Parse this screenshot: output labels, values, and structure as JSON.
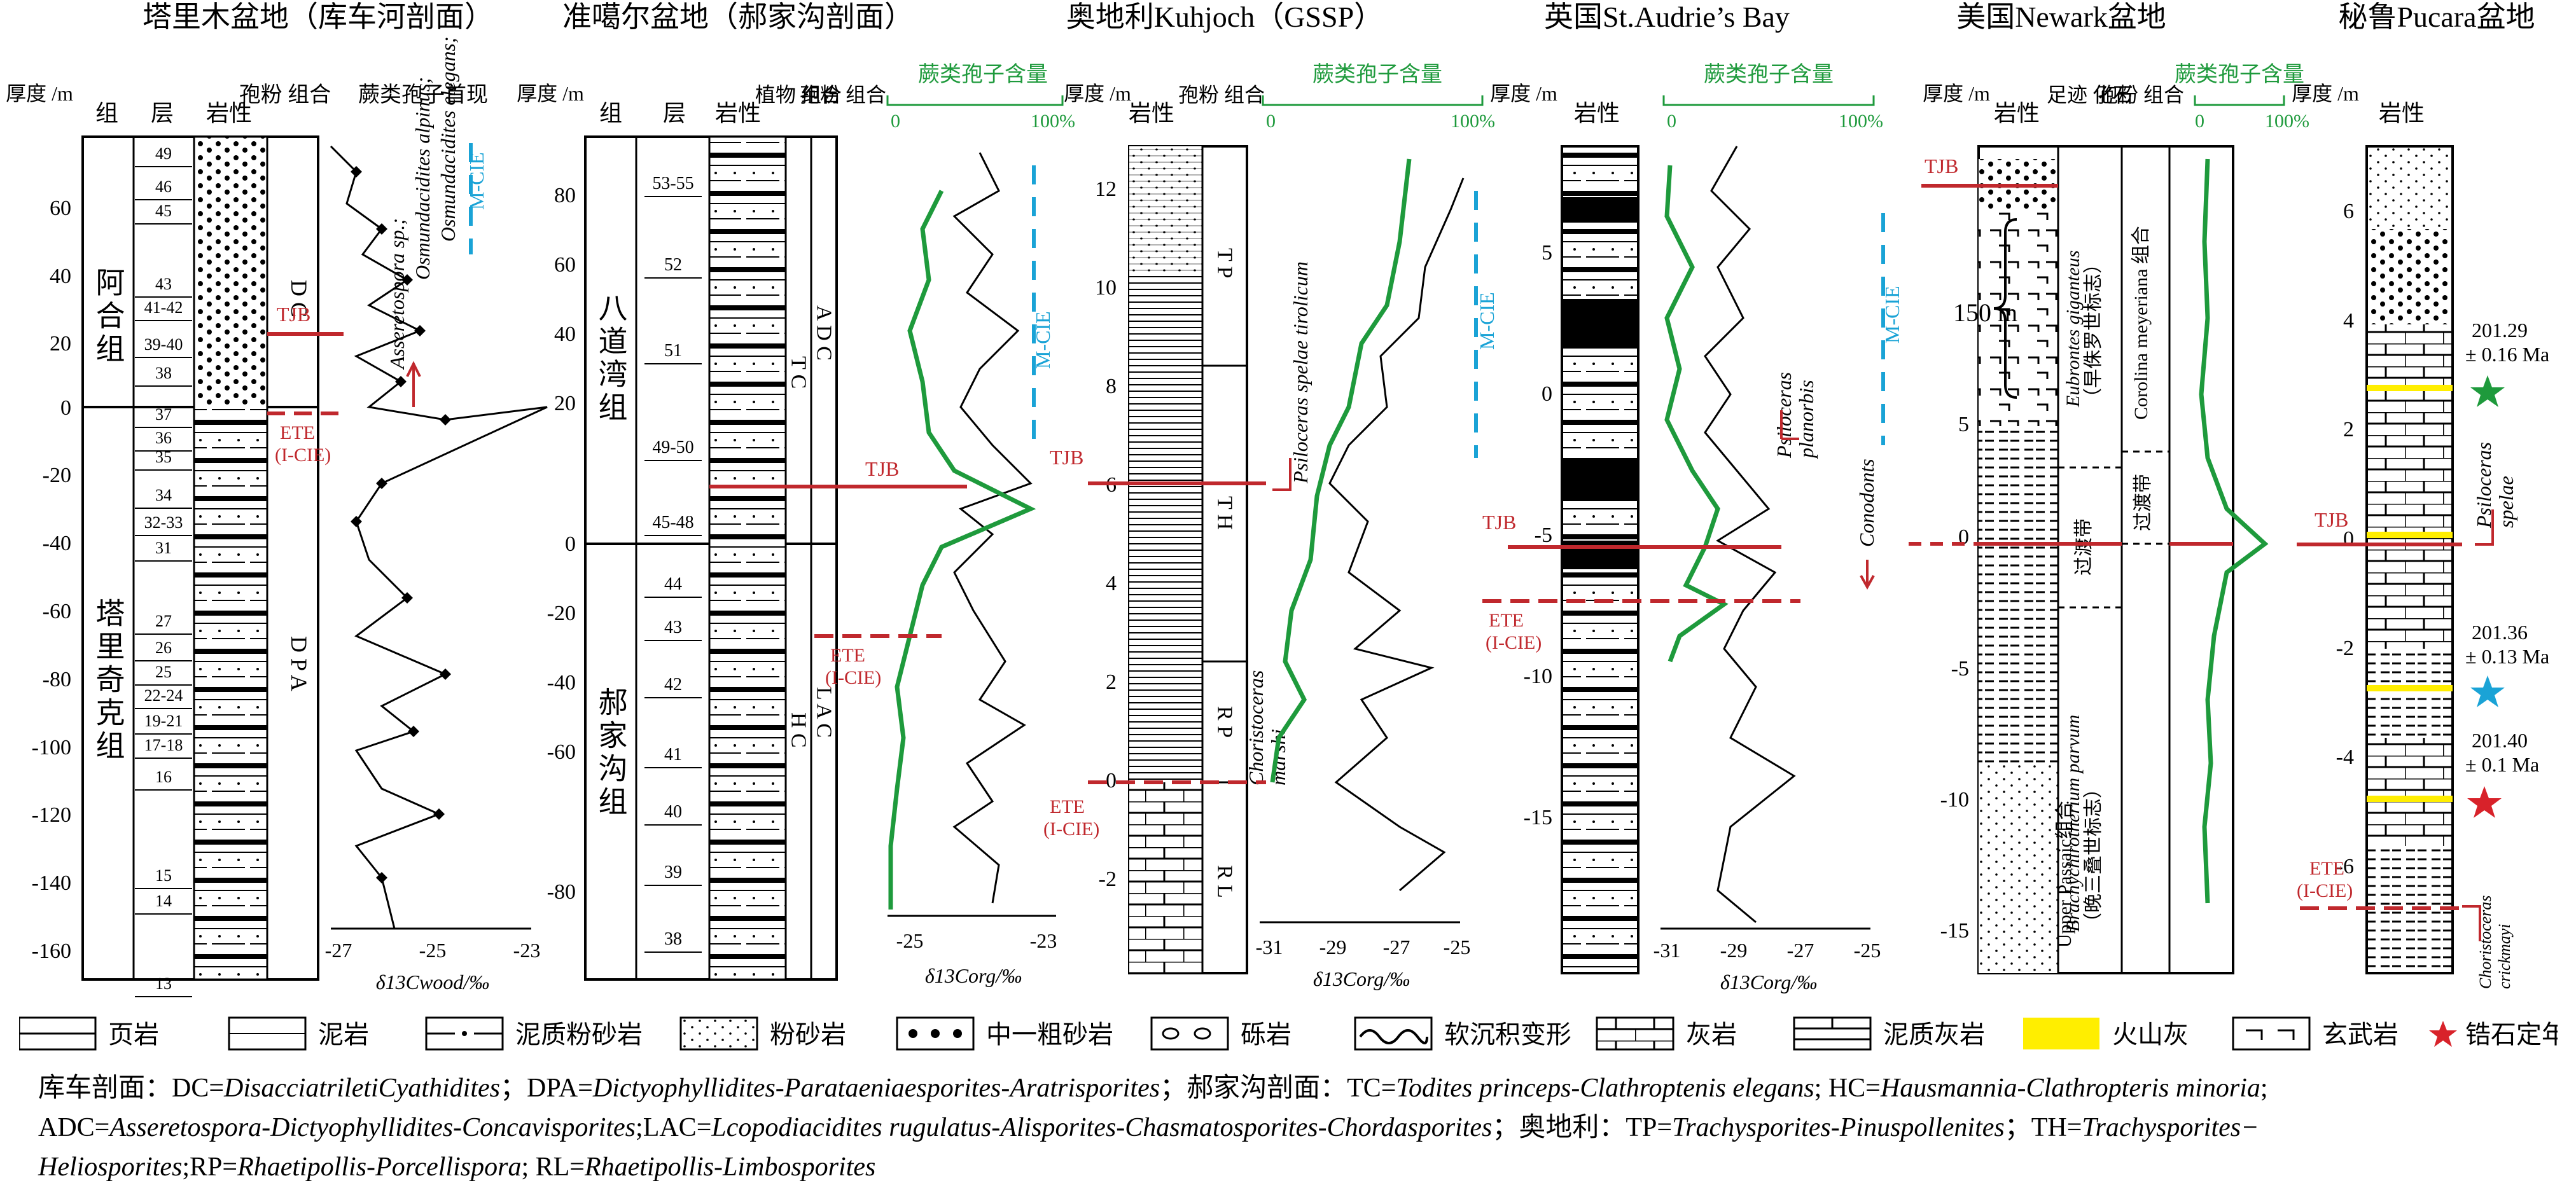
{
  "sections": [
    {
      "title": "塔里木盆地（库车河剖面）"
    },
    {
      "title": "准噶尔盆地（郝家沟剖面）"
    },
    {
      "title": "奥地利Kuhjoch（GSSP）"
    },
    {
      "title": "英国St.Audrie’s Bay"
    },
    {
      "title": "美国Newark盆地"
    },
    {
      "title": "秘鲁Pucara盆地"
    }
  ],
  "headers": {
    "thickness": "厚度\n/m",
    "formation": "组",
    "bed": "层",
    "lithology": "岩性",
    "spore_assemblage": "孢粉\n组合",
    "plant_assemblage": "植物\n组合",
    "fern_first": "蕨类孢子首现",
    "fern_content": "蕨类孢子含量",
    "pct0": "0",
    "pct100": "100%",
    "footprint": "足迹\n化石"
  },
  "tarim": {
    "formations": [
      "阿合组",
      "塔里奇克组"
    ],
    "beds": [
      "49",
      "46",
      "45",
      "43",
      "41-42",
      "39-40",
      "38",
      "37",
      "36",
      "35",
      "34",
      "32-33",
      "31",
      "27",
      "26",
      "25",
      "22-24",
      "19-21",
      "17-18",
      "16",
      "15",
      "14",
      "13"
    ],
    "y_ticks": [
      "60",
      "40",
      "20",
      "0",
      "-20",
      "-40",
      "-60",
      "-80",
      "-100",
      "-120",
      "-140",
      "-160"
    ],
    "assemblages": [
      "D C",
      "D P A"
    ],
    "species": [
      "Asseretospora sp.;",
      "Osmundacidites alpinus;",
      "Osmundacidites elegans;"
    ],
    "labels": {
      "mcie": "M-CIE",
      "tjb": "TJB",
      "ete": "ETE",
      "icie": "(I-CIE)"
    },
    "x_ticks": [
      "-27",
      "-25",
      "-23"
    ],
    "axis_label": "δ13Cwood/‰"
  },
  "junggar": {
    "formations": [
      "八道湾组",
      "郝家沟组"
    ],
    "beds": [
      "53-55",
      "52",
      "51",
      "49-50",
      "45-48",
      "44",
      "43",
      "42",
      "41",
      "40",
      "39",
      "38"
    ],
    "y_ticks": [
      "80",
      "60",
      "40",
      "20",
      "0",
      "-20",
      "-40",
      "-60",
      "-80"
    ],
    "plant_assemblages": [
      "T C",
      "H C"
    ],
    "spore_assemblages": [
      "A D C",
      "L A C"
    ],
    "labels": {
      "mcie": "M-CIE",
      "tjb": "TJB",
      "ete": "ETE",
      "icie": "(I-CIE)"
    },
    "x_ticks": [
      "-25",
      "-23"
    ],
    "axis_label": "δ13Corg/‰"
  },
  "austria": {
    "y_ticks": [
      "12",
      "10",
      "8",
      "6",
      "4",
      "2",
      "0",
      "-2"
    ],
    "assemblages": [
      "T P",
      "T H",
      "R P",
      "R L"
    ],
    "ammonites": [
      "Psiloceras spelae tirolicum",
      "Choristoceras",
      "marshi"
    ],
    "labels": {
      "mcie": "M-CIE",
      "tjb": "TJB",
      "ete": "ETE",
      "icie": "(I-CIE)"
    },
    "x_ticks": [
      "-31",
      "-29",
      "-27",
      "-25"
    ],
    "axis_label": "δ13Corg/‰"
  },
  "uk": {
    "y_ticks": [
      "5",
      "0",
      "-5",
      "-10",
      "-15"
    ],
    "fossils": [
      "Psiloceras",
      "planorbis",
      "Conodonts"
    ],
    "labels": {
      "mcie": "M-CIE",
      "tjb": "TJB",
      "ete": "ETE",
      "icie": "(I-CIE)"
    },
    "x_ticks": [
      "-31",
      "-29",
      "-27",
      "-25"
    ],
    "axis_label": "δ13Corg/‰"
  },
  "newark": {
    "y_ticks": [
      "5",
      "0",
      "-5",
      "-10",
      "-15"
    ],
    "scale": "150 m",
    "footprints": [
      "Eubrontes giganteus",
      "（早侏罗世标志）",
      "过渡带",
      "Brachychirotherium parvum",
      "（晚三叠世标志）"
    ],
    "spore_zones": [
      "Corolina meyeriana 组合",
      "过渡带",
      "Upper Passaic组合"
    ],
    "labels": {
      "tjb": "TJB"
    }
  },
  "peru": {
    "y_ticks": [
      "6",
      "4",
      "2",
      "0",
      "-2",
      "-4",
      "-6"
    ],
    "ages": [
      {
        "value": "201.29",
        "err": "± 0.16 Ma"
      },
      {
        "value": "201.36",
        "err": "± 0.13 Ma"
      },
      {
        "value": "201.40",
        "err": "± 0.1 Ma"
      }
    ],
    "ammonites": [
      "Psiloceras",
      "spelae",
      "Choristoceras",
      "crickmayi"
    ],
    "labels": {
      "tjb": "TJB",
      "ete": "ETE",
      "icie": "(I-CIE)"
    }
  },
  "legend": [
    "页岩",
    "泥岩",
    "泥质粉砂岩",
    "粉砂岩",
    "中一粗砂岩",
    "砾岩",
    "软沉积变形",
    "灰岩",
    "泥质灰岩",
    "火山灰",
    "玄武岩",
    "锆石定年"
  ],
  "footnote": {
    "line1_a": "库车剖面：DC=",
    "line1_b": "DisacciatriletiCyathidites",
    "line1_c": "；DPA=",
    "line1_d": "Dictyophyllidites-Parataeniaesporites-Aratrisporites",
    "line1_e": "；郝家沟剖面：TC=",
    "line1_f": "Todites princeps-Clathroptenis elegans",
    "line1_g": "; HC=",
    "line1_h": "Hausmannia-Clathropteris minoria",
    "line1_i": ";",
    "line2_a": "ADC=",
    "line2_b": "Asseretospora-Dictyophyllidites-Concavisporites",
    "line2_c": ";LAC=",
    "line2_d": "Lcopodiacidites rugulatus-Alisporites-Chasmatosporites-Chordasporites",
    "line2_e": "；奥地利：TP=",
    "line2_f": "Trachysporites-Pinuspollenites",
    "line2_g": "；TH=",
    "line2_h": "Trachysporites−",
    "line3_a": "Heliosporites",
    "line3_b": ";RP=",
    "line3_c": "Rhaetipollis-Porcellispora",
    "line3_d": "; RL=",
    "line3_e": "Rhaetipollis-Limbosporites"
  },
  "colors": {
    "tjb": "#c0282d",
    "ete": "#c0282d",
    "mcie": "#1aa3d6",
    "green": "#1e9a3c",
    "ash": "#ffee00",
    "star_green": "#1e9a3c",
    "star_blue": "#1aa3d6",
    "star_red": "#d8222a"
  }
}
